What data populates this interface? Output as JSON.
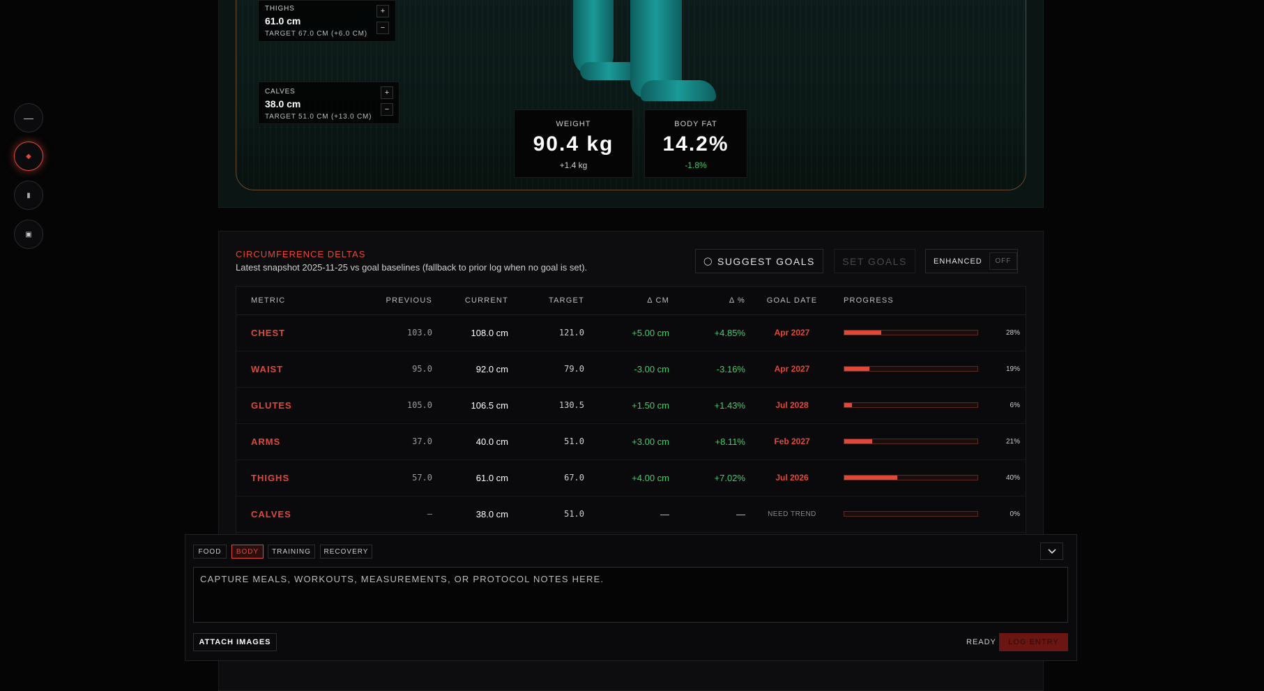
{
  "rail": [
    {
      "icon": "minus-icon",
      "glyph": "—"
    },
    {
      "icon": "diamond-icon",
      "glyph": "◆"
    },
    {
      "icon": "bar-icon",
      "glyph": "▮"
    },
    {
      "icon": "square-dot-icon",
      "glyph": "▣"
    }
  ],
  "model": {
    "thighs": {
      "label": "THIGHS",
      "value": "61.0 cm",
      "target": "TARGET 67.0 CM (+6.0 CM)"
    },
    "calves": {
      "label": "CALVES",
      "value": "38.0 cm",
      "target": "TARGET 51.0 CM (+13.0 CM)"
    },
    "plus": "+",
    "minus": "−",
    "weight": {
      "label": "WEIGHT",
      "value": "90.4 kg",
      "delta": "+1.4 kg"
    },
    "bodyfat": {
      "label": "BODY FAT",
      "value": "14.2%",
      "delta": "-1.8%"
    }
  },
  "section": {
    "title": "CIRCUMFERENCE DELTAS",
    "subtitle": "Latest snapshot 2025-11-25 vs goal baselines (fallback to prior log when no goal is set).",
    "suggest_label": "SUGGEST GOALS",
    "suggest_icon": "◯",
    "set_label": "SET GOALS",
    "enhanced_label": "ENHANCED",
    "enhanced_state": "OFF"
  },
  "table": {
    "headers": {
      "metric": "METRIC",
      "previous": "PREVIOUS",
      "current": "CURRENT",
      "target": "TARGET",
      "dcm": "Δ CM",
      "dpct": "Δ %",
      "goal": "GOAL DATE",
      "progress": "PROGRESS"
    },
    "rows": [
      {
        "metric": "CHEST",
        "previous": "103.0",
        "current": "108.0 cm",
        "target": "121.0",
        "dcm": "+5.00 cm",
        "dpct": "+4.85%",
        "goal": "Apr 2027",
        "progress": 28,
        "progress_label": "28%"
      },
      {
        "metric": "WAIST",
        "previous": "95.0",
        "current": "92.0 cm",
        "target": "79.0",
        "dcm": "-3.00 cm",
        "dpct": "-3.16%",
        "goal": "Apr 2027",
        "progress": 19,
        "progress_label": "19%"
      },
      {
        "metric": "GLUTES",
        "previous": "105.0",
        "current": "106.5 cm",
        "target": "130.5",
        "dcm": "+1.50 cm",
        "dpct": "+1.43%",
        "goal": "Jul 2028",
        "progress": 6,
        "progress_label": "6%"
      },
      {
        "metric": "ARMS",
        "previous": "37.0",
        "current": "40.0 cm",
        "target": "51.0",
        "dcm": "+3.00 cm",
        "dpct": "+8.11%",
        "goal": "Feb 2027",
        "progress": 21,
        "progress_label": "21%"
      },
      {
        "metric": "THIGHS",
        "previous": "57.0",
        "current": "61.0 cm",
        "target": "67.0",
        "dcm": "+4.00 cm",
        "dpct": "+7.02%",
        "goal": "Jul 2026",
        "progress": 40,
        "progress_label": "40%"
      },
      {
        "metric": "CALVES",
        "previous": "–",
        "current": "38.0 cm",
        "target": "51.0",
        "dcm": "—",
        "dpct": "—",
        "goal": "NEED TREND",
        "progress": 0,
        "progress_label": "0%"
      }
    ]
  },
  "composer": {
    "tabs": [
      "FOOD",
      "BODY",
      "TRAINING",
      "RECOVERY"
    ],
    "active_tab": "BODY",
    "placeholder": "CAPTURE MEALS, WORKOUTS, MEASUREMENTS, OR PROTOCOL NOTES HERE.",
    "attach_label": "ATTACH IMAGES",
    "status": "READY",
    "submit_label": "LOG ENTRY"
  },
  "colors": {
    "accent": "#e2483a",
    "positive": "#3ecf6a",
    "teal": "#1a9a98"
  }
}
